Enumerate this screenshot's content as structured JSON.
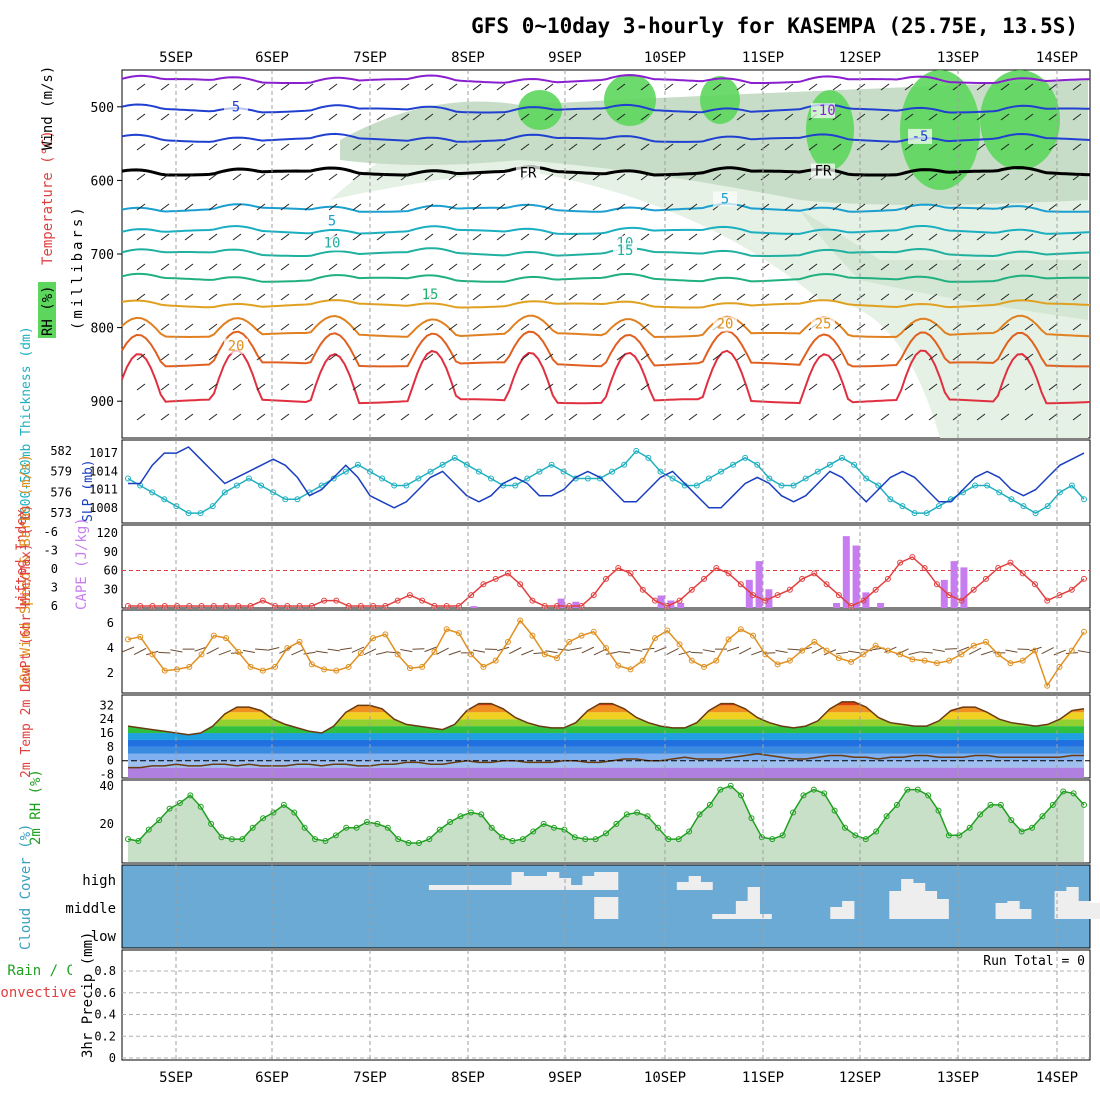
{
  "title": "GFS 0~10day 3-hourly for KASEMPA (25.75E, 13.5S)",
  "date_labels": [
    "5SEP",
    "6SEP",
    "7SEP",
    "8SEP",
    "9SEP",
    "10SEP",
    "11SEP",
    "12SEP",
    "13SEP",
    "14SEP"
  ],
  "colors": {
    "grid": "#a0a0a0",
    "cloud_bg": "#6aaad4",
    "rh_green": "#5cd65c",
    "temp_blue": "#2040d0",
    "temp_purple": "#8a1fd0",
    "cape_purple": "#c77df0",
    "li_red": "#e04040",
    "wind_orange": "#e09020",
    "slp_blue": "#1a3fc0",
    "thick_cyan": "#20b0c0"
  },
  "chart_data": [
    {
      "type": "line",
      "panel": "upper-air",
      "ylabel_parts": [
        "RH (%)",
        "Temperature (°C)",
        "Wind (m/s)"
      ],
      "ylabel_units": "(millibars)",
      "yticks": [
        "500",
        "600",
        "700",
        "800",
        "900"
      ],
      "ylim": [
        450,
        950
      ],
      "contour_labels": [
        {
          "text": "5",
          "date": "5SEP",
          "p": 505,
          "color": "blue"
        },
        {
          "text": "-10",
          "date": "11SEP",
          "p": 510,
          "color": "purple"
        },
        {
          "text": "-5",
          "date": "12SEP",
          "p": 545,
          "color": "blue"
        },
        {
          "text": "FR",
          "date": "8SEP",
          "p": 595,
          "color": "black"
        },
        {
          "text": "FR",
          "date": "11SEP",
          "p": 592,
          "color": "black"
        },
        {
          "text": "5",
          "date": "10SEP",
          "p": 630,
          "color": "cyan"
        },
        {
          "text": "5",
          "date": "6SEP",
          "p": 660,
          "color": "cyan"
        },
        {
          "text": "10",
          "date": "6SEP",
          "p": 690,
          "color": "teal"
        },
        {
          "text": "10",
          "date": "9SEP",
          "p": 690,
          "color": "teal"
        },
        {
          "text": "15",
          "date": "9SEP",
          "p": 700,
          "color": "teal"
        },
        {
          "text": "15",
          "date": "7SEP",
          "p": 760,
          "color": "green"
        },
        {
          "text": "20",
          "date": "10SEP",
          "p": 800,
          "color": "orange"
        },
        {
          "text": "25",
          "date": "11SEP",
          "p": 800,
          "color": "orange"
        },
        {
          "text": "20",
          "date": "5SEP",
          "p": 830,
          "color": "orange"
        }
      ]
    },
    {
      "type": "line",
      "panel": "slp-thickness",
      "ylabel_left": "1000-500mb Thickness (dm)",
      "ylabel_right": "SLP (mb)",
      "left_ticks": [
        "582",
        "579",
        "576",
        "573"
      ],
      "right_ticks": [
        "1017",
        "1014",
        "1011",
        "1008"
      ],
      "series": [
        {
          "name": "SLP (mb)",
          "color": "#1a3fc0",
          "values": [
            1012,
            1012,
            1015,
            1017,
            1017,
            1018,
            1016,
            1014,
            1012,
            1013,
            1014,
            1015,
            1016,
            1015,
            1013,
            1010,
            1011,
            1013,
            1015,
            1013,
            1010,
            1009,
            1008,
            1009,
            1011,
            1013,
            1014,
            1012,
            1010,
            1009,
            1010,
            1012,
            1013,
            1012,
            1010,
            1010,
            1011,
            1013,
            1014,
            1013,
            1011,
            1009,
            1009,
            1011,
            1013,
            1014,
            1012,
            1010,
            1008,
            1008,
            1010,
            1012,
            1013,
            1012,
            1010,
            1009,
            1010,
            1012,
            1014,
            1013,
            1011,
            1009,
            1011,
            1013,
            1014,
            1013,
            1011,
            1009,
            1009,
            1011,
            1013,
            1014,
            1013,
            1011,
            1010,
            1011,
            1013,
            1015,
            1016,
            1017
          ]
        },
        {
          "name": "1000-500mb Thickness (dm)",
          "color": "#20b0c0",
          "values": [
            578,
            577,
            576,
            575,
            574,
            573,
            573,
            574,
            576,
            577,
            578,
            577,
            576,
            575,
            575,
            576,
            577,
            578,
            579,
            580,
            579,
            578,
            577,
            577,
            578,
            579,
            580,
            581,
            580,
            579,
            578,
            577,
            577,
            578,
            579,
            580,
            579,
            578,
            578,
            578,
            579,
            580,
            582,
            581,
            579,
            578,
            577,
            577,
            578,
            579,
            580,
            581,
            580,
            578,
            577,
            577,
            578,
            579,
            580,
            581,
            580,
            578,
            577,
            575,
            574,
            573,
            573,
            574,
            575,
            576,
            577,
            577,
            576,
            575,
            574,
            573,
            574,
            576,
            577,
            575
          ]
        }
      ]
    },
    {
      "type": "bar",
      "panel": "cape-li",
      "ylabel_left": "Lifted Index",
      "ylabel_right": "CAPE (J/kg)",
      "li_ticks": [
        "-6",
        "-3",
        "0",
        "3",
        "6"
      ],
      "cape_ticks": [
        "120",
        "90",
        "60",
        "30"
      ],
      "cape_bars": [
        {
          "date": "8SEP",
          "offset": 0.55,
          "value": 3
        },
        {
          "date": "9SEP",
          "offset": 0.45,
          "value": 15
        },
        {
          "date": "9SEP",
          "offset": 0.6,
          "value": 10
        },
        {
          "date": "10SEP",
          "offset": 0.45,
          "value": 20
        },
        {
          "date": "10SEP",
          "offset": 0.55,
          "value": 12
        },
        {
          "date": "10SEP",
          "offset": 0.65,
          "value": 8
        },
        {
          "date": "11SEP",
          "offset": 0.35,
          "value": 45
        },
        {
          "date": "11SEP",
          "offset": 0.45,
          "value": 75
        },
        {
          "date": "11SEP",
          "offset": 0.55,
          "value": 30
        },
        {
          "date": "12SEP",
          "offset": 0.25,
          "value": 8
        },
        {
          "date": "12SEP",
          "offset": 0.35,
          "value": 115
        },
        {
          "date": "12SEP",
          "offset": 0.45,
          "value": 100
        },
        {
          "date": "12SEP",
          "offset": 0.55,
          "value": 25
        },
        {
          "date": "12SEP",
          "offset": 0.7,
          "value": 8
        },
        {
          "date": "13SEP",
          "offset": 0.35,
          "value": 45
        },
        {
          "date": "13SEP",
          "offset": 0.45,
          "value": 75
        },
        {
          "date": "13SEP",
          "offset": 0.55,
          "value": 65
        }
      ],
      "li_values": [
        7,
        7,
        7,
        7,
        7,
        7,
        7,
        7,
        7,
        7,
        7,
        6,
        7,
        7,
        7,
        7,
        6,
        6,
        7,
        7,
        7,
        7,
        6,
        5,
        6,
        7,
        7,
        7,
        5,
        3,
        2,
        1,
        3,
        6,
        7,
        7,
        7,
        7,
        5,
        2,
        0,
        1,
        4,
        6,
        7,
        6,
        4,
        2,
        0,
        1,
        3,
        5,
        6,
        5,
        4,
        2,
        1,
        3,
        5,
        7,
        6,
        4,
        2,
        -1,
        -2,
        0,
        3,
        5,
        6,
        4,
        2,
        0,
        -1,
        1,
        3,
        6,
        5,
        4,
        2
      ]
    },
    {
      "type": "line",
      "panel": "10m-wind",
      "ylabel": "10m Wind Speed & Barbs (m/s)",
      "yticks": [
        "6",
        "4",
        "2"
      ],
      "series": [
        {
          "name": "Speed",
          "color": "#e09020",
          "values": [
            4.7,
            4.9,
            3.5,
            2.2,
            2.3,
            2.5,
            3.5,
            5.0,
            4.8,
            3.7,
            2.5,
            2.2,
            2.5,
            4.0,
            4.5,
            2.7,
            2.3,
            2.2,
            2.5,
            3.6,
            4.8,
            5.1,
            3.5,
            2.4,
            2.5,
            3.7,
            5.5,
            5.2,
            3.5,
            2.5,
            3.0,
            4.5,
            6.2,
            5.0,
            3.5,
            3.2,
            4.5,
            5.0,
            5.3,
            4.0,
            2.6,
            2.3,
            3.0,
            4.8,
            5.4,
            4.3,
            3.0,
            2.5,
            3.0,
            4.7,
            5.5,
            5.0,
            3.5,
            2.7,
            3.0,
            3.8,
            4.5,
            3.8,
            3.2,
            2.9,
            3.5,
            4.2,
            3.8,
            3.5,
            3.1,
            3.0,
            2.8,
            3.0,
            3.5,
            4.2,
            4.5,
            3.5,
            2.8,
            3.0,
            3.8,
            1.0,
            2.5,
            3.8,
            5.3
          ]
        }
      ]
    },
    {
      "type": "area",
      "panel": "2m-temp",
      "ylabel": "2m Temp 2m DewPt (6hr Min/Max) (°C)",
      "yticks": [
        "32",
        "24",
        "16",
        "8",
        "0",
        "-8"
      ],
      "series": [
        {
          "name": "2m Temp",
          "values": [
            20,
            19,
            18,
            17,
            16,
            15,
            16,
            20,
            27,
            31,
            31,
            29,
            24,
            21,
            19,
            17,
            16,
            20,
            28,
            32,
            32,
            30,
            24,
            21,
            20,
            19,
            18,
            21,
            29,
            33,
            33,
            30,
            25,
            22,
            20,
            19,
            19,
            22,
            29,
            33,
            33,
            30,
            25,
            22,
            20,
            19,
            19,
            22,
            29,
            33,
            33,
            30,
            25,
            22,
            20,
            19,
            20,
            23,
            30,
            34,
            34,
            31,
            25,
            22,
            21,
            20,
            20,
            23,
            29,
            31,
            31,
            28,
            24,
            22,
            21,
            20,
            21,
            24,
            29,
            30
          ]
        },
        {
          "name": "2m DewPt",
          "values": [
            -4,
            -4,
            -3,
            -3,
            -2,
            -3,
            -3,
            -2,
            -2,
            -3,
            -2,
            -3,
            -3,
            -3,
            -2,
            -2,
            -3,
            -2,
            -2,
            -3,
            -3,
            -2,
            -2,
            -1,
            -1,
            -2,
            -2,
            -1,
            0,
            -1,
            -1,
            0,
            0,
            -1,
            -1,
            -1,
            0,
            0,
            -1,
            -1,
            0,
            1,
            1,
            0,
            0,
            1,
            2,
            1,
            1,
            1,
            2,
            3,
            4,
            3,
            2,
            1,
            1,
            2,
            3,
            3,
            2,
            2,
            1,
            2,
            2,
            3,
            3,
            2,
            2,
            2,
            3,
            3,
            2,
            2,
            2,
            2,
            2,
            2,
            3,
            3
          ]
        }
      ]
    },
    {
      "type": "area",
      "panel": "2m-rh",
      "ylabel": "2m RH (%)",
      "yticks": [
        "40",
        "20"
      ],
      "series": [
        {
          "name": "2m RH",
          "values": [
            12,
            11,
            17,
            22,
            28,
            31,
            35,
            29,
            20,
            13,
            12,
            12,
            18,
            23,
            26,
            30,
            26,
            18,
            12,
            11,
            14,
            18,
            18,
            21,
            20,
            18,
            12,
            10,
            10,
            12,
            17,
            21,
            24,
            26,
            25,
            18,
            13,
            11,
            12,
            16,
            20,
            18,
            17,
            13,
            12,
            12,
            15,
            20,
            25,
            26,
            24,
            18,
            12,
            12,
            16,
            25,
            30,
            38,
            40,
            35,
            23,
            13,
            12,
            14,
            26,
            35,
            38,
            36,
            27,
            18,
            14,
            12,
            16,
            24,
            30,
            38,
            38,
            35,
            27,
            14,
            14,
            18,
            25,
            30,
            30,
            22,
            16,
            18,
            24,
            30,
            37,
            36,
            30
          ]
        }
      ]
    },
    {
      "type": "bar",
      "panel": "cloud-cover",
      "ylabel": "Cloud Cover (%)",
      "ylevels": [
        "high",
        "middle",
        "low"
      ],
      "high": [
        0,
        0,
        0,
        0,
        0,
        0,
        0,
        0,
        0,
        0,
        0,
        0,
        0,
        0,
        0,
        0,
        0,
        0,
        0,
        0,
        0,
        0,
        0,
        0,
        0,
        0,
        5,
        5,
        5,
        5,
        5,
        5,
        5,
        18,
        14,
        14,
        18,
        12,
        5,
        14,
        18,
        18,
        0,
        0,
        0,
        0,
        0,
        8,
        14,
        8,
        0,
        0,
        0,
        0,
        0,
        0,
        0,
        0,
        0,
        0,
        0,
        0,
        0,
        0,
        0,
        0,
        0,
        0,
        0,
        0,
        0,
        0,
        0,
        0,
        0,
        0,
        0,
        0,
        0,
        0,
        0,
        0
      ],
      "middle": [
        0,
        0,
        0,
        0,
        0,
        0,
        0,
        0,
        0,
        0,
        0,
        0,
        0,
        0,
        0,
        0,
        0,
        0,
        0,
        0,
        0,
        0,
        0,
        0,
        0,
        0,
        0,
        0,
        0,
        0,
        0,
        0,
        0,
        0,
        0,
        0,
        0,
        0,
        0,
        0,
        22,
        22,
        0,
        0,
        0,
        0,
        0,
        0,
        0,
        0,
        5,
        5,
        18,
        32,
        5,
        0,
        0,
        0,
        0,
        0,
        12,
        18,
        0,
        0,
        0,
        0,
        0,
        0,
        0,
        0,
        0,
        0,
        0,
        0,
        0,
        0,
        0,
        0,
        0,
        0,
        0,
        0
      ],
      "middle2": [
        0,
        0,
        0,
        0,
        0,
        0,
        0,
        0,
        0,
        0,
        0,
        0,
        0,
        0,
        0,
        0,
        0,
        0,
        0,
        0,
        0,
        0,
        0,
        0,
        0,
        0,
        0,
        0,
        0,
        0,
        0,
        0,
        0,
        0,
        0,
        0,
        0,
        0,
        0,
        0,
        0,
        0,
        0,
        0,
        0,
        0,
        0,
        0,
        0,
        0,
        0,
        0,
        0,
        0,
        0,
        0,
        0,
        0,
        0,
        0,
        0,
        0,
        0,
        0,
        0,
        28,
        40,
        36,
        28,
        20,
        0,
        0,
        0,
        0,
        16,
        18,
        10,
        0,
        0,
        28,
        32,
        18,
        16,
        10,
        0,
        0,
        4,
        4,
        4,
        4,
        0,
        0
      ]
    },
    {
      "type": "bar",
      "panel": "precip",
      "ylabel_left": "Total / Rain / Convective",
      "ylabel": "3hr Precip (mm)",
      "yticks": [
        "0.8",
        "0.6",
        "0.4",
        "0.2",
        "0"
      ],
      "run_total": "Run Total = 0",
      "values": []
    }
  ]
}
